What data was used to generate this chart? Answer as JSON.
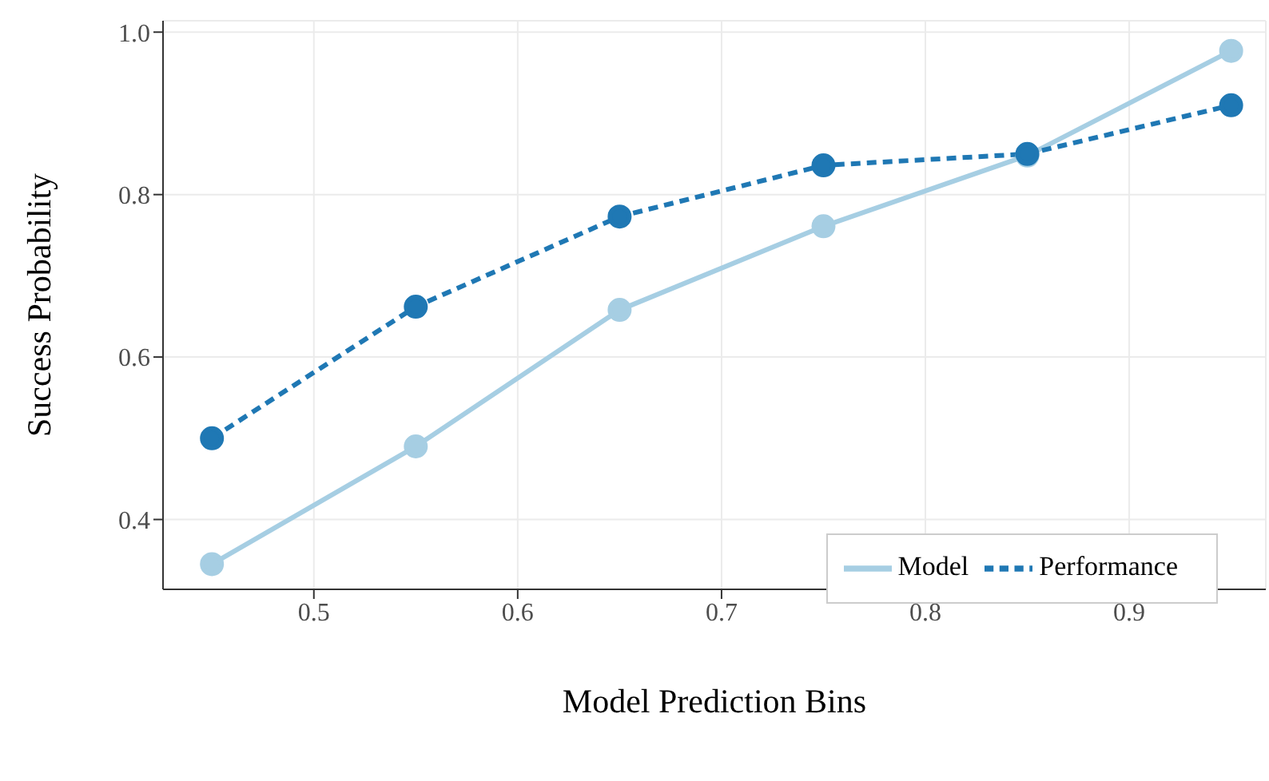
{
  "chart_data": {
    "type": "line",
    "xlabel": "Model Prediction Bins",
    "ylabel": "Success Probability",
    "x": [
      0.45,
      0.55,
      0.65,
      0.75,
      0.85,
      0.95
    ],
    "series": [
      {
        "name": "Model",
        "color": "#a6cee3",
        "values": [
          0.345,
          0.49,
          0.658,
          0.761,
          0.848,
          0.977
        ],
        "line_style": "solid"
      },
      {
        "name": "Performance",
        "color": "#1f78b4",
        "values": [
          0.5,
          0.662,
          0.773,
          0.836,
          0.85,
          0.91
        ],
        "line_style": "dashed"
      }
    ],
    "xlim": [
      0.426,
      0.967
    ],
    "ylim": [
      0.314,
      1.014
    ],
    "xticks": [
      0.5,
      0.6,
      0.7,
      0.8,
      0.9
    ],
    "yticks": [
      0.4,
      0.6,
      0.8,
      {
        "value": 1,
        "label": "1.0"
      }
    ],
    "grid": true,
    "legend": "bottom right",
    "marker": "circle"
  }
}
